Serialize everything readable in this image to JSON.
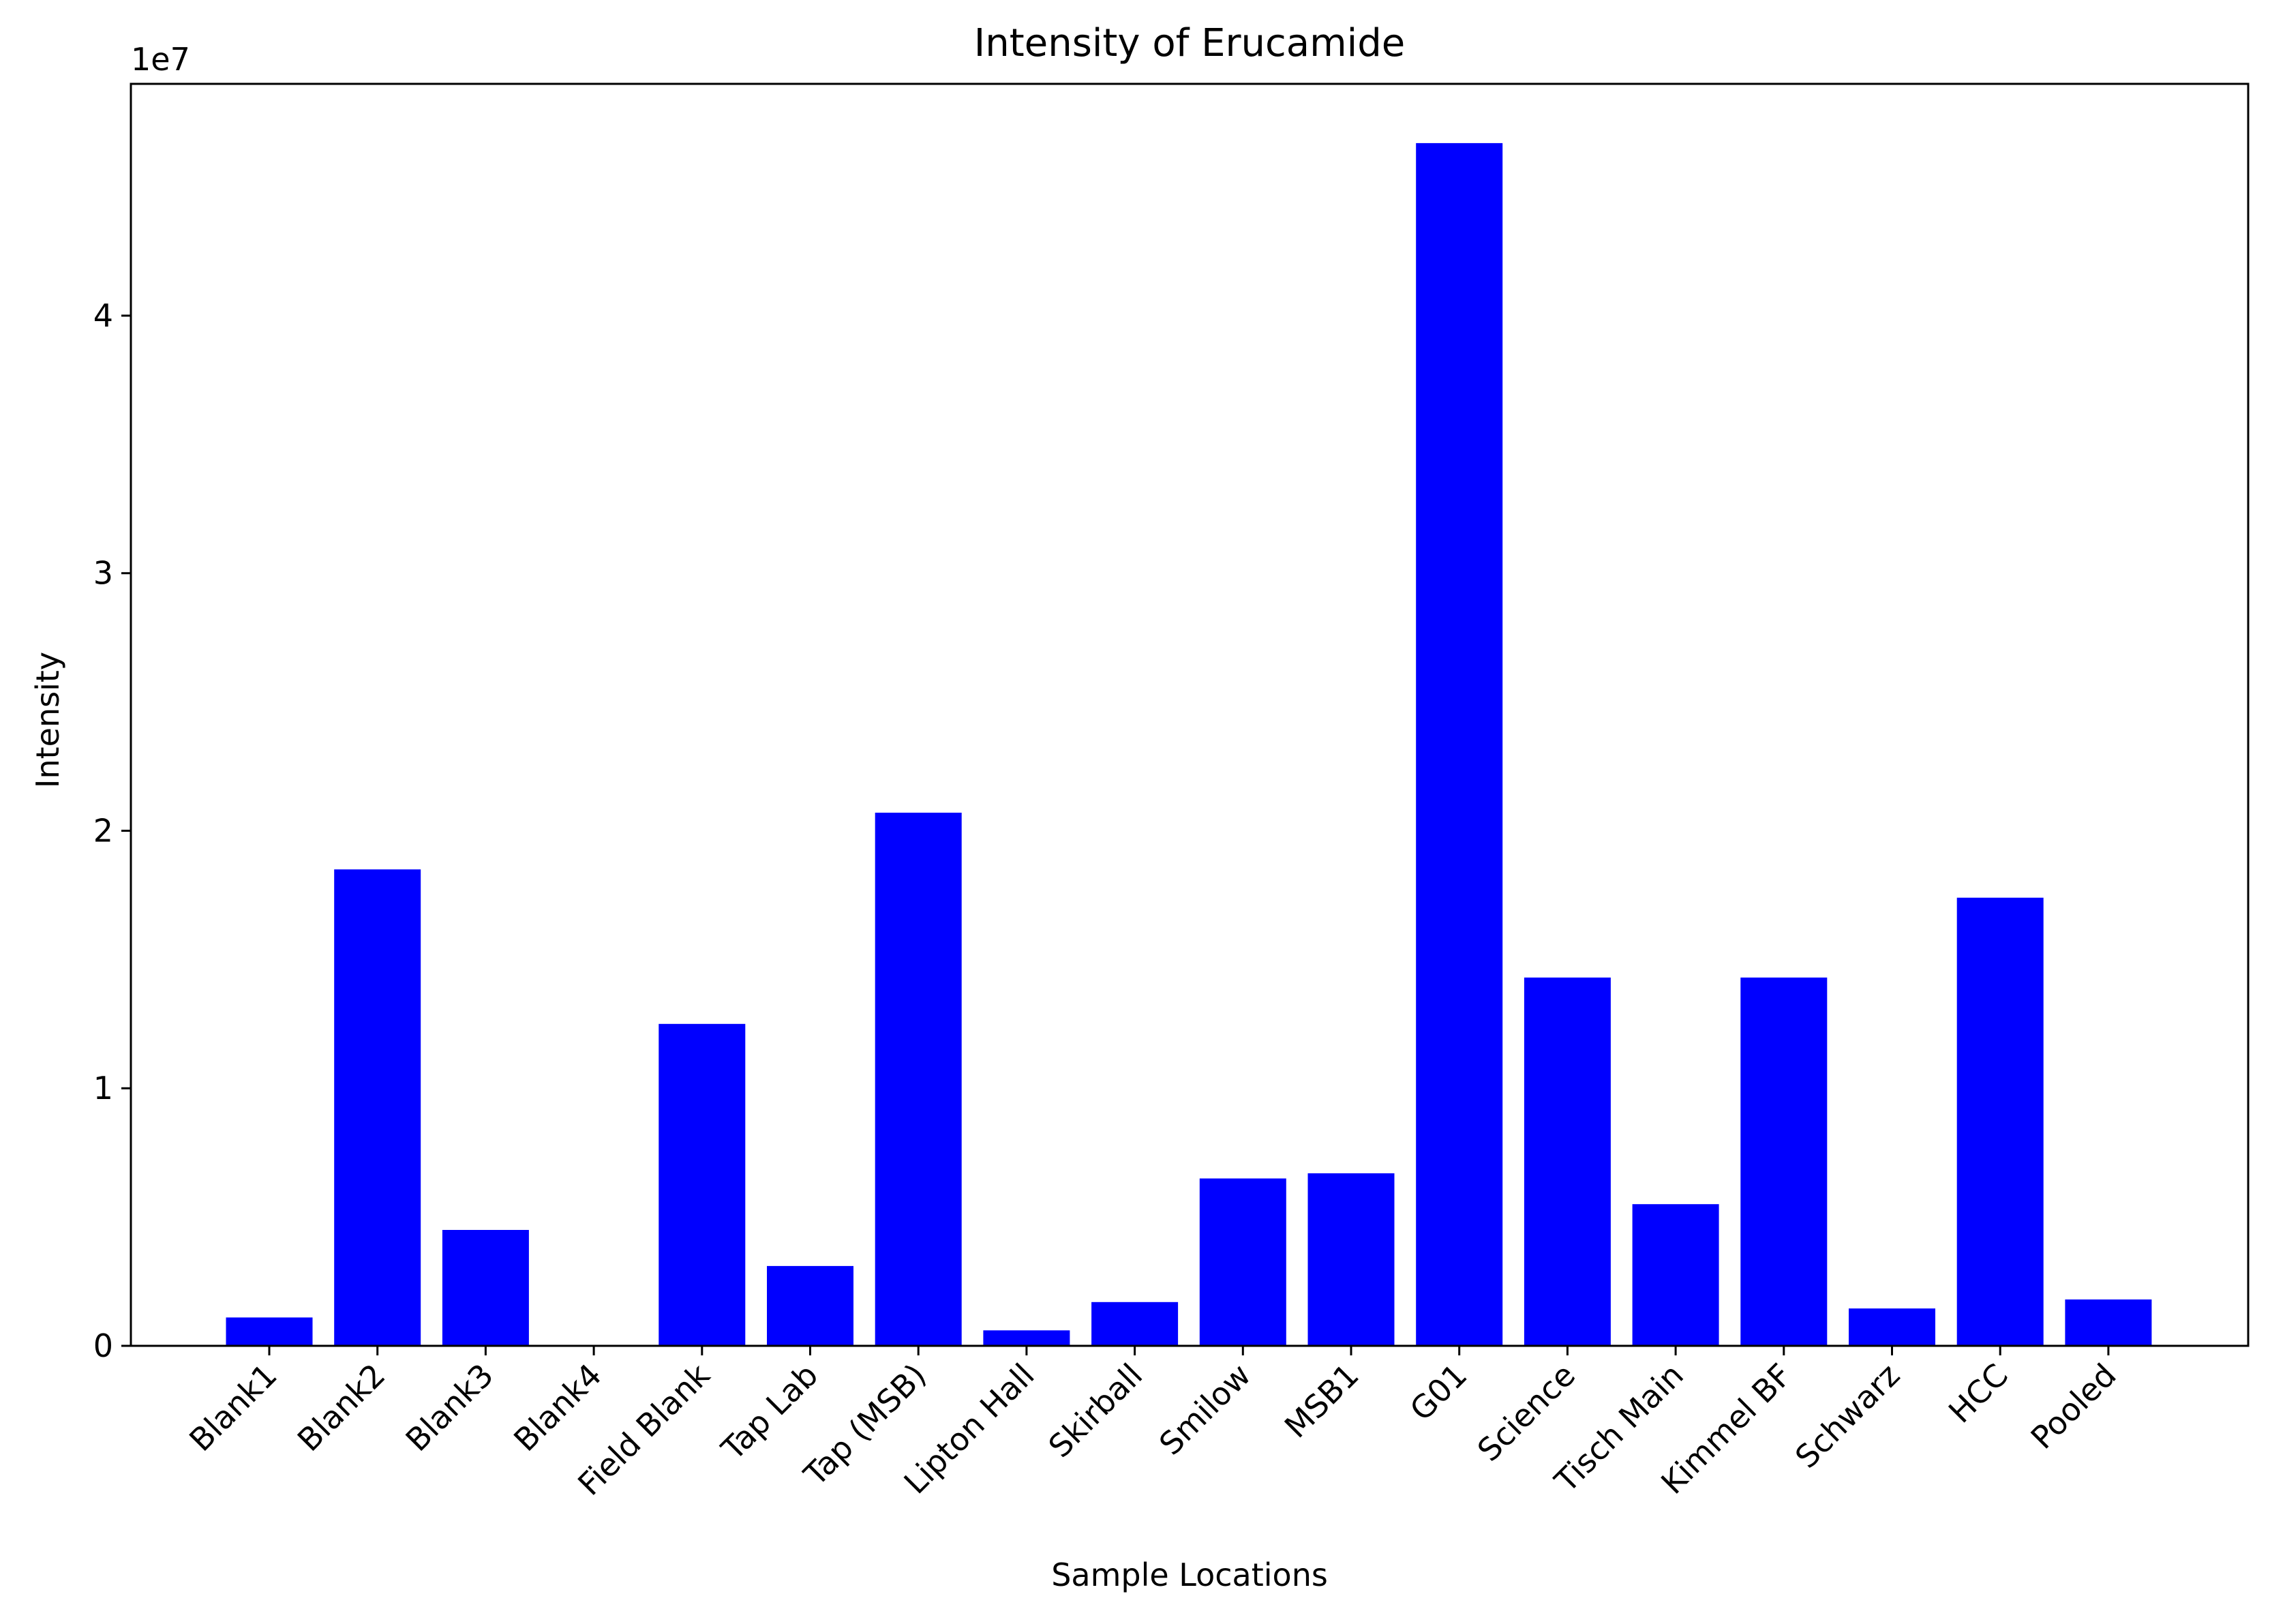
{
  "chart_data": {
    "type": "bar",
    "title": "Intensity of Erucamide",
    "xlabel": "Sample Locations",
    "ylabel": "Intensity",
    "offset_label": "1e7",
    "ylim": [
      0,
      4.9
    ],
    "yticks": [
      0,
      1,
      2,
      3,
      4
    ],
    "ytick_labels": [
      "0",
      "1",
      "2",
      "3",
      "4"
    ],
    "grid": false,
    "bar_color": "#0000ff",
    "categories": [
      "Blank1",
      "Blank2",
      "Blank3",
      "Blank4",
      "Field Blank",
      "Tap Lab",
      "Tap (MSB)",
      "Lipton Hall",
      "Skirball",
      "Smilow",
      "MSB1",
      "G01",
      "Science",
      "Tisch Main",
      "Kimmel BF",
      "Schwarz",
      "HCC",
      "Pooled"
    ],
    "values": [
      0.11,
      1.85,
      0.45,
      0.0,
      1.25,
      0.31,
      2.07,
      0.06,
      0.17,
      0.65,
      0.67,
      4.67,
      1.43,
      0.55,
      1.43,
      0.145,
      1.74,
      0.18
    ]
  }
}
